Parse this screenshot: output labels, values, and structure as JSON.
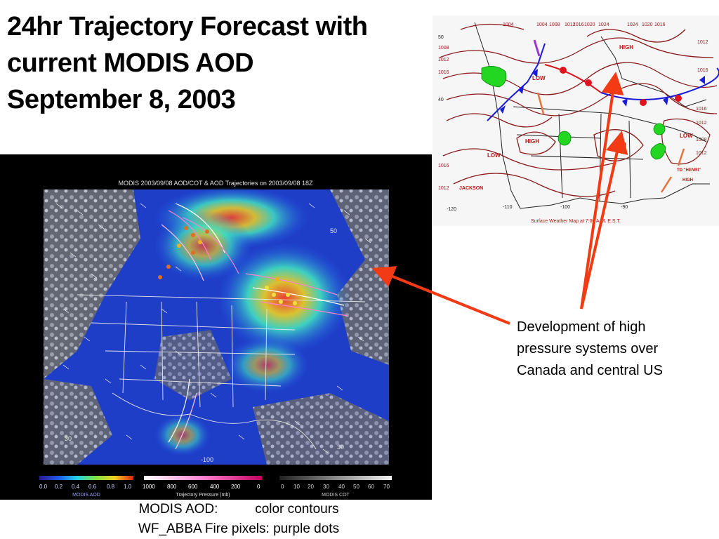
{
  "slide": {
    "title_lines": [
      "24hr Trajectory Forecast with",
      "current MODIS AOD",
      "September 8, 2003"
    ],
    "annotation_lines": [
      "Development of high",
      "pressure systems over",
      "Canada and central US"
    ],
    "caption_lines": [
      "MODIS AOD:          color contours",
      "WF_ABBA Fire pixels: purple dots"
    ]
  },
  "weather_map": {
    "caption": "Surface Weather Map at 7:00 A.M. E.S.T.",
    "pressure_labels": [
      "1004",
      "1004",
      "1008",
      "1012",
      "1016",
      "1020",
      "1024",
      "1024",
      "1020",
      "1016",
      "1012",
      "1016",
      "1008",
      "1012",
      "1016",
      "1016",
      "1012",
      "1008",
      "1012",
      "1016",
      "1012"
    ],
    "system_labels": [
      "HIGH",
      "LOW",
      "HIGH",
      "HIGH",
      "LOW",
      "LOW",
      "JACKSON",
      "TD \"HENRI\"",
      "HIGH"
    ],
    "lat_labels": [
      "50",
      "40"
    ],
    "lon_labels": [
      "-120",
      "-110",
      "-100",
      "-90"
    ],
    "front_color_cold": "#1a1adb",
    "front_color_warm": "#e0141e",
    "isobar_color": "#8b1a1a",
    "precip_color": "#22d622"
  },
  "satellite": {
    "title": "MODIS 2003/09/08 AOD/COT & AOD Trajectories on 2003/09/08 18Z",
    "colorbars": [
      {
        "name": "MODIS AOD",
        "ticks": [
          "0.0",
          "0.2",
          "0.4",
          "0.6",
          "0.8",
          "1.0"
        ]
      },
      {
        "name": "Trajectory Pressure (mb)",
        "ticks": [
          "1000",
          "800",
          "600",
          "400",
          "200",
          "0"
        ]
      },
      {
        "name": "MODIS COT",
        "ticks": [
          "0",
          "10",
          "20",
          "30",
          "40",
          "50",
          "60",
          "70"
        ]
      }
    ],
    "lat_labels": [
      "50",
      "30",
      "30"
    ],
    "lon_labels": [
      "-100"
    ]
  },
  "colors": {
    "arrow": "#f23a14",
    "aod_bg": "#1f3ec8"
  }
}
